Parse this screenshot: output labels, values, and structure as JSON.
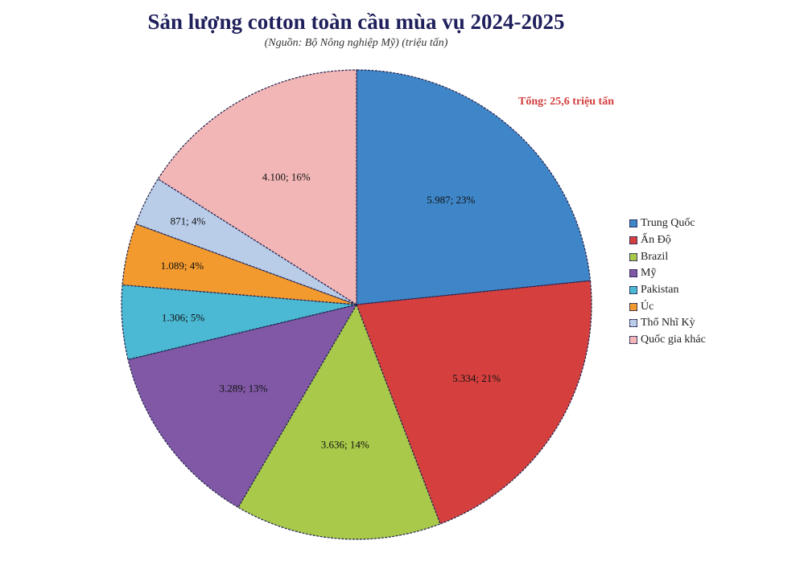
{
  "header": {
    "title": "Sản lượng cotton toàn cầu mùa vụ 2024-2025",
    "subtitle": "(Nguồn: Bộ Nông nghiệp Mỹ) (triệu tấn)"
  },
  "annotation": {
    "total": "Tổng: 25,6 triệu tấn"
  },
  "chart_data": {
    "type": "pie",
    "title": "Sản lượng cotton toàn cầu mùa vụ 2024-2025",
    "subtitle": "(Nguồn: Bộ Nông nghiệp Mỹ) (triệu tấn)",
    "annotations": [
      "Tổng: 25,6 triệu tấn"
    ],
    "legend_position": "right",
    "categories": [
      "Trung Quốc",
      "Ấn Độ",
      "Brazil",
      "Mỹ",
      "Pakistan",
      "Úc",
      "Thổ Nhĩ Kỳ",
      "Quốc gia khác"
    ],
    "values": [
      5987,
      5334,
      3636,
      3289,
      1306,
      1089,
      871,
      4100
    ],
    "percentages": [
      23,
      21,
      14,
      13,
      5,
      4,
      4,
      16
    ],
    "data_labels": [
      "5.987; 23%",
      "5.334; 21%",
      "3.636; 14%",
      "3.289; 13%",
      "1.306; 5%",
      "1.089; 4%",
      "871; 4%",
      "4.100; 16%"
    ],
    "colors": [
      "#3f86c8",
      "#d5403e",
      "#a8c94a",
      "#8058a5",
      "#4bb9d3",
      "#f39a2f",
      "#b9cde9",
      "#f3b6b6"
    ]
  }
}
